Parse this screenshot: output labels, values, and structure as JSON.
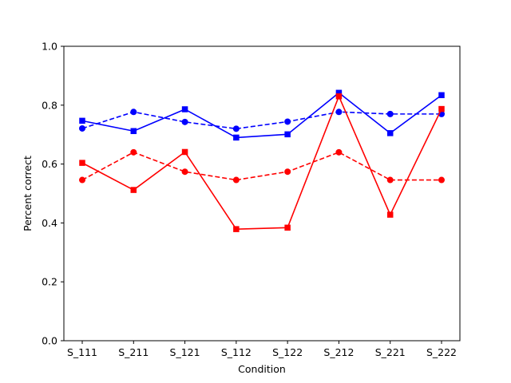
{
  "chart_data": {
    "type": "line",
    "title": "",
    "xlabel": "Condition",
    "ylabel": "Percent correct",
    "ylim": [
      0,
      1.0
    ],
    "grid": false,
    "categories": [
      "S_111",
      "S_211",
      "S_121",
      "S_112",
      "S_122",
      "S_212",
      "S_221",
      "S_222"
    ],
    "yticks": [
      "0.0",
      "0.2",
      "0.4",
      "0.6",
      "0.8",
      "1.0"
    ],
    "series": [
      {
        "color": "#0000ff",
        "linestyle": "solid",
        "marker": "square",
        "values": [
          0.747,
          0.712,
          0.786,
          0.69,
          0.701,
          0.842,
          0.705,
          0.834
        ]
      },
      {
        "color": "#0000ff",
        "linestyle": "dashed",
        "marker": "circle",
        "values": [
          0.721,
          0.777,
          0.743,
          0.72,
          0.744,
          0.777,
          0.77,
          0.77
        ]
      },
      {
        "color": "#ff0000",
        "linestyle": "solid",
        "marker": "square",
        "values": [
          0.604,
          0.512,
          0.641,
          0.379,
          0.384,
          0.83,
          0.428,
          0.787
        ]
      },
      {
        "color": "#ff0000",
        "linestyle": "dashed",
        "marker": "circle",
        "values": [
          0.546,
          0.64,
          0.574,
          0.546,
          0.574,
          0.64,
          0.546,
          0.546
        ]
      }
    ]
  }
}
